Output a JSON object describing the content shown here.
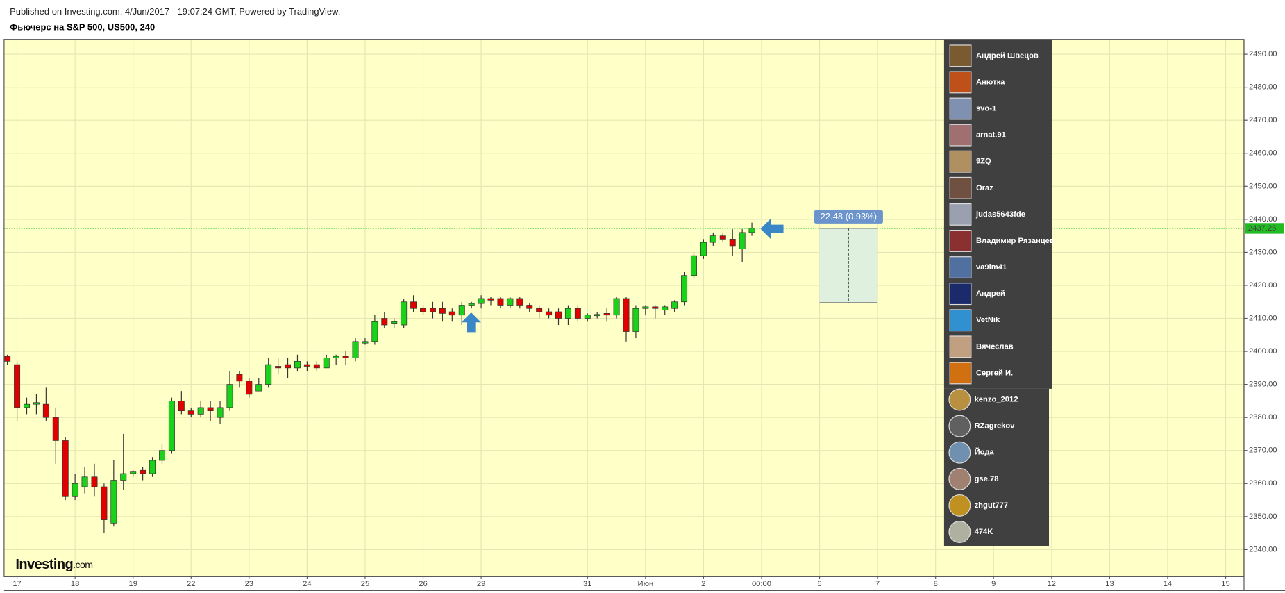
{
  "header": {
    "published": "Published on Investing.com, 4/Jun/2017 - 19:07:24 GMT, Powered by TradingView."
  },
  "logo": {
    "main": "Investing",
    "suffix": ".com"
  },
  "chart_data": {
    "type": "candlestick",
    "title": "Фьючерс на S&P 500, US500, 240",
    "x": [
      0,
      1,
      2,
      3,
      4,
      5,
      6,
      7,
      8,
      9,
      10,
      11,
      12,
      13,
      14,
      15,
      16,
      17,
      18,
      19,
      20,
      21,
      22,
      23,
      24,
      25,
      26,
      27,
      28,
      29,
      30,
      31,
      32,
      33,
      34,
      35,
      36,
      37,
      38,
      39,
      40,
      41,
      42,
      43,
      44,
      45,
      46,
      47,
      48,
      49,
      50,
      51,
      52,
      53,
      54,
      55,
      56,
      57,
      58,
      59,
      60,
      61,
      62,
      63,
      64,
      65,
      66,
      67,
      68,
      69,
      70,
      71,
      72,
      73,
      74,
      75,
      76,
      77
    ],
    "series": [
      {
        "name": "US500",
        "up_color": "#19d219",
        "down_color": "#e00000",
        "open": [
          2398.5,
          2396,
          2383,
          2384,
          2384,
          2380,
          2373,
          2356,
          2359,
          2362,
          2359,
          2348,
          2361,
          2363,
          2364,
          2363,
          2367,
          2370,
          2385,
          2382,
          2381,
          2383,
          2380,
          2383,
          2393,
          2391,
          2388,
          2390,
          2395.5,
          2396,
          2395,
          2396,
          2396,
          2395,
          2398,
          2398.5,
          2398,
          2402.5,
          2403,
          2410,
          2408.5,
          2408,
          2415,
          2413,
          2413,
          2413,
          2412,
          2411,
          2414,
          2414.5,
          2416,
          2416,
          2414,
          2416,
          2414,
          2413,
          2412,
          2412,
          2410,
          2413,
          2410,
          2410.8,
          2411.5,
          2411,
          2416,
          2406,
          2413,
          2413.5,
          2412.5,
          2413,
          2415,
          2423,
          2429,
          2433,
          2435,
          2434,
          2431,
          2436
        ],
        "high": [
          2399,
          2397,
          2386,
          2387,
          2389,
          2383,
          2374,
          2363,
          2365,
          2366,
          2360,
          2367,
          2375,
          2364,
          2365,
          2368,
          2372,
          2386,
          2388,
          2383,
          2385,
          2385,
          2385,
          2394,
          2394,
          2392,
          2392,
          2398,
          2398,
          2398,
          2399,
          2397,
          2397,
          2399,
          2399,
          2400,
          2404,
          2404,
          2411,
          2412,
          2410,
          2416,
          2417,
          2414,
          2415,
          2415,
          2413,
          2415,
          2415,
          2417,
          2416.5,
          2416.5,
          2416.5,
          2416.5,
          2414.5,
          2414,
          2413,
          2413,
          2414,
          2414,
          2411.5,
          2412,
          2413,
          2416.5,
          2416.5,
          2414,
          2414,
          2414,
          2414,
          2415.5,
          2424,
          2430,
          2434,
          2436,
          2436,
          2437,
          2437,
          2439
        ],
        "low": [
          2396,
          2379,
          2381,
          2381,
          2379,
          2366,
          2355,
          2355,
          2357,
          2356,
          2345,
          2347,
          2358,
          2362,
          2361,
          2362,
          2366,
          2369,
          2381,
          2380,
          2380,
          2379,
          2378,
          2382,
          2389,
          2386,
          2388,
          2389,
          2393,
          2392,
          2394,
          2394,
          2394,
          2395,
          2396,
          2396,
          2397,
          2402,
          2402,
          2407,
          2407,
          2407,
          2412,
          2411,
          2410,
          2409,
          2409,
          2408,
          2413,
          2413,
          2414,
          2413,
          2413,
          2413,
          2412,
          2410,
          2410,
          2408,
          2408,
          2409,
          2409,
          2410,
          2409,
          2410,
          2403,
          2404,
          2411,
          2410,
          2411,
          2412,
          2414,
          2422,
          2428,
          2432,
          2433,
          2429,
          2427,
          2435
        ],
        "close": [
          2397,
          2383,
          2384,
          2384.5,
          2380,
          2373,
          2356,
          2360,
          2362,
          2359,
          2349,
          2361,
          2363,
          2363.5,
          2363,
          2367,
          2370,
          2385,
          2382,
          2381,
          2383,
          2382,
          2383,
          2390,
          2391,
          2387,
          2390,
          2396,
          2395,
          2395,
          2397,
          2395.5,
          2395,
          2398,
          2398.5,
          2398,
          2403,
          2403,
          2409,
          2408,
          2409,
          2415,
          2413,
          2412,
          2412,
          2411.5,
          2411,
          2414,
          2414.5,
          2416,
          2415.5,
          2414,
          2416,
          2414,
          2413,
          2412,
          2411,
          2410,
          2413,
          2410,
          2411,
          2411.2,
          2411,
          2416,
          2406,
          2413,
          2413.5,
          2413,
          2413.5,
          2415,
          2423,
          2429,
          2433,
          2435,
          2434,
          2432,
          2436,
          2437.25
        ]
      }
    ],
    "last_price": 2437.25,
    "price_line_color": "#22bb22",
    "background": "#ffffc8",
    "grid": true,
    "xlim": [
      -0.34,
      127.9
    ],
    "ylim": [
      2331.8,
      2494.5
    ],
    "xticks": [
      {
        "value": 1,
        "label": "17"
      },
      {
        "value": 7,
        "label": "18"
      },
      {
        "value": 13,
        "label": "19"
      },
      {
        "value": 19,
        "label": "22"
      },
      {
        "value": 25,
        "label": "23"
      },
      {
        "value": 31,
        "label": "24"
      },
      {
        "value": 37,
        "label": "25"
      },
      {
        "value": 43,
        "label": "26"
      },
      {
        "value": 49,
        "label": "29"
      },
      {
        "value": 60,
        "label": "31"
      },
      {
        "value": 66,
        "label": "Июн"
      },
      {
        "value": 72,
        "label": "2"
      },
      {
        "value": 78,
        "label": "00:00"
      },
      {
        "value": 84,
        "label": "6"
      },
      {
        "value": 90,
        "label": "7"
      },
      {
        "value": 96,
        "label": "8"
      },
      {
        "value": 102,
        "label": "9"
      },
      {
        "value": 108,
        "label": "12"
      },
      {
        "value": 114,
        "label": "13"
      },
      {
        "value": 120,
        "label": "14"
      },
      {
        "value": 126,
        "label": "15"
      }
    ],
    "yticks": [
      {
        "value": 2340,
        "label": "2340.00"
      },
      {
        "value": 2350,
        "label": "2350.00"
      },
      {
        "value": 2360,
        "label": "2360.00"
      },
      {
        "value": 2370,
        "label": "2370.00"
      },
      {
        "value": 2380,
        "label": "2380.00"
      },
      {
        "value": 2390,
        "label": "2390.00"
      },
      {
        "value": 2400,
        "label": "2400.00"
      },
      {
        "value": 2410,
        "label": "2410.00"
      },
      {
        "value": 2420,
        "label": "2420.00"
      },
      {
        "value": 2430,
        "label": "2430.00"
      },
      {
        "value": 2440,
        "label": "2440.00"
      },
      {
        "value": 2450,
        "label": "2450.00"
      },
      {
        "value": 2460,
        "label": "2460.00"
      },
      {
        "value": 2470,
        "label": "2470.00"
      },
      {
        "value": 2480,
        "label": "2480.00"
      },
      {
        "value": 2490,
        "label": "2490.00"
      }
    ],
    "measure": {
      "label": "22.48 (0.93%)",
      "x": [
        84,
        90
      ],
      "y": [
        2414.77,
        2437.25
      ]
    }
  },
  "users": [
    "Андрей Швецов",
    "Анютка",
    "svo-1",
    "arnat.91",
    "9ZQ",
    "Oraz",
    "judas5643fde",
    "Владимир Рязанцев",
    "va9im41",
    "Андрей",
    "VetNik",
    "Вячеслав",
    "Сергей И.",
    "kenzo_2012",
    "RZagrekov",
    "Йода",
    "gse.78",
    "zhgut777",
    "474K"
  ]
}
